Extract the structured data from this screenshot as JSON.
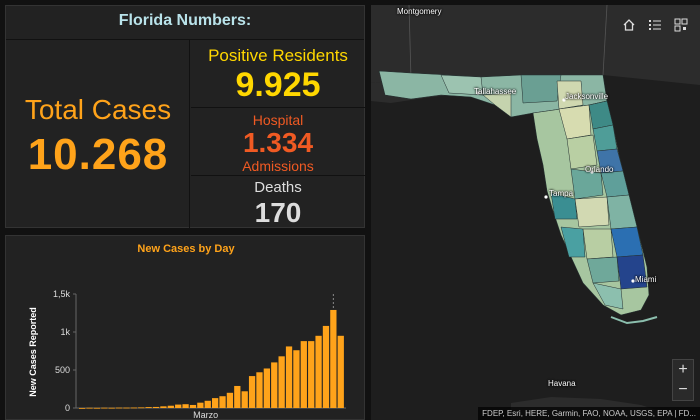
{
  "stats": {
    "title": "Florida Numbers:",
    "total_label": "Total Cases",
    "total_value": "10.268",
    "positive_label": "Positive Residents",
    "positive_value": "9.925",
    "hospital_label": "Hospital",
    "hospital_value": "1.334",
    "admissions_label": "Admissions",
    "deaths_label": "Deaths",
    "deaths_value": "170"
  },
  "colors": {
    "panel_bg": "#222222",
    "title_cyan": "#b9e3ea",
    "orange": "#ffa31a",
    "yellow": "#ffd700",
    "red_orange": "#f05a23",
    "death_gray": "#dddddd"
  },
  "chart_data": {
    "type": "bar",
    "title": "New Cases by Day",
    "xlabel": "",
    "ylabel": "New Cases Reported",
    "x_tick_label": "Marzo",
    "yticks": [
      "0",
      "500",
      "1k",
      "1,5k"
    ],
    "ylim": [
      0,
      1500
    ],
    "grid": false,
    "color": "#ffa31a",
    "values": [
      0,
      3,
      2,
      4,
      3,
      5,
      5,
      6,
      8,
      12,
      14,
      22,
      30,
      45,
      50,
      40,
      70,
      95,
      130,
      155,
      200,
      290,
      220,
      420,
      470,
      520,
      600,
      680,
      810,
      760,
      880,
      880,
      950,
      1080,
      1290,
      950
    ]
  },
  "map": {
    "labels": {
      "montgomery": "Montgomery",
      "tallahassee": "Tallahassee",
      "jacksonville": "Jacksonville",
      "orlando": "Orlando",
      "tampa": "Tampa",
      "miami": "Miami",
      "havana": "Havana"
    },
    "tools": {
      "home": "home-icon",
      "list": "list-icon",
      "qr": "qr-icon"
    },
    "zoom_in": "+",
    "zoom_out": "−",
    "attribution": "FDEP, Esri, HERE, Garmin, FAO, NOAA, USGS, EPA | FD..."
  }
}
